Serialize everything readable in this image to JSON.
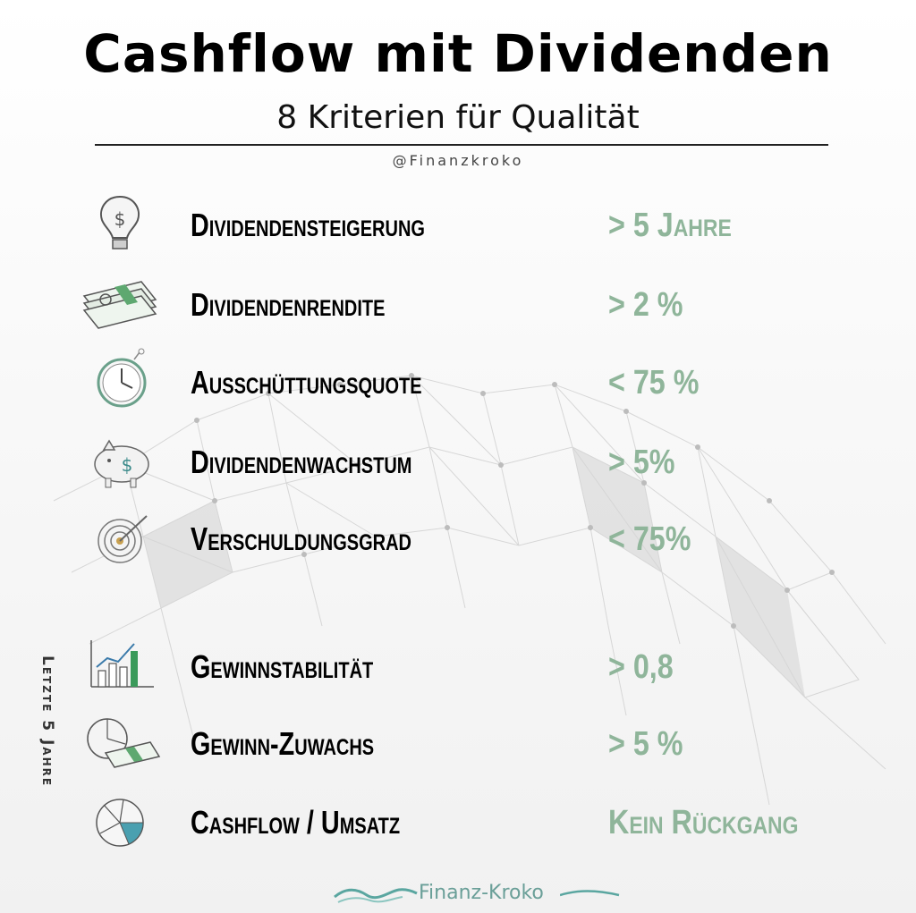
{
  "header": {
    "title": "Cashflow mit Dividenden",
    "subtitle": "8 Kriterien für Qualität",
    "handle": "@Finanzkroko"
  },
  "criteria": [
    {
      "label": "Dividendensteigerung",
      "value": "> 5 Jahre",
      "icon": "lightbulb-dollar-icon"
    },
    {
      "label": "Dividendenrendite",
      "value": "> 2 %",
      "icon": "money-stack-icon"
    },
    {
      "label": "Ausschüttungsquote",
      "value": "< 75 %",
      "icon": "clock-icon"
    },
    {
      "label": "Dividendenwachstum",
      "value": "> 5%",
      "icon": "piggy-bank-icon"
    },
    {
      "label": "Verschuldungsgrad",
      "value": "< 75%",
      "icon": "target-icon"
    },
    {
      "label": "Gewinnstabilität",
      "value": "> 0,8",
      "icon": "bar-chart-icon"
    },
    {
      "label": "Gewinn-Zuwachs",
      "value": "> 5 %",
      "icon": "chart-money-icon"
    },
    {
      "label": "Cashflow / Umsatz",
      "value": "Kein Rückgang",
      "icon": "pie-chart-icon"
    }
  ],
  "side_note": "Letzte 5 Jahre",
  "footer": {
    "brand": "Finanz-Kroko"
  },
  "colors": {
    "value_green": "#8fb59a",
    "accent_green": "#3a9a5a",
    "brand_teal": "#6a9f98"
  }
}
